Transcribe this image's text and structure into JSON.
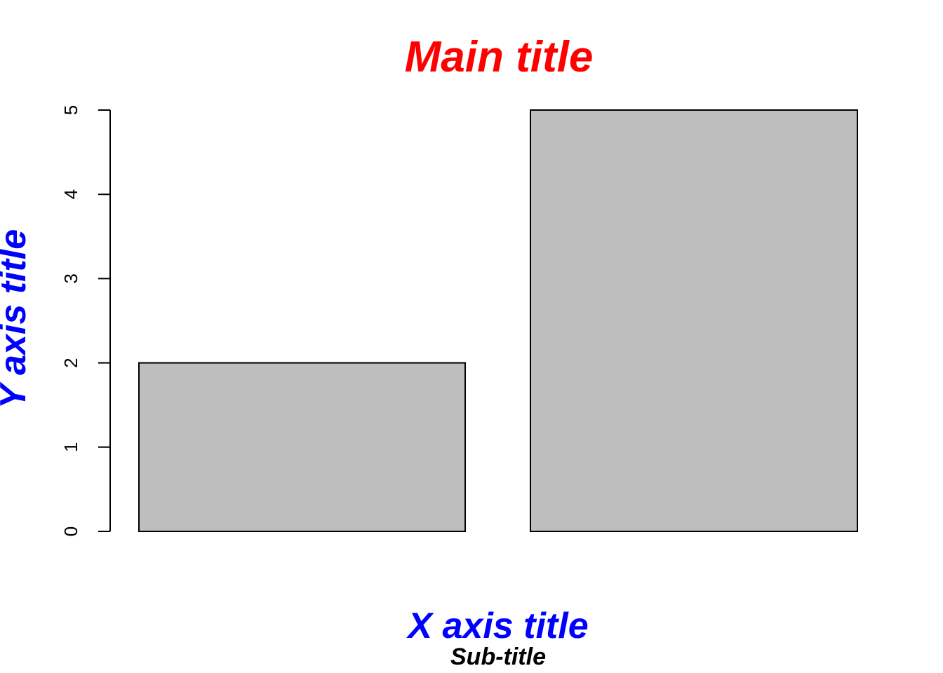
{
  "chart_data": {
    "type": "bar",
    "categories": [
      "",
      ""
    ],
    "values": [
      2,
      5
    ],
    "title": "Main title",
    "subtitle": "Sub-title",
    "xlabel": "X axis title",
    "ylabel": "Y axis title",
    "ylim": [
      0,
      5
    ],
    "yticks": [
      0,
      1,
      2,
      3,
      4,
      5
    ],
    "grid": false,
    "colors": {
      "title": "#ff0000",
      "axis_titles": "#0000ff",
      "subtitle": "#000000",
      "bar_fill": "#bebebe",
      "bar_stroke": "#000000"
    }
  }
}
